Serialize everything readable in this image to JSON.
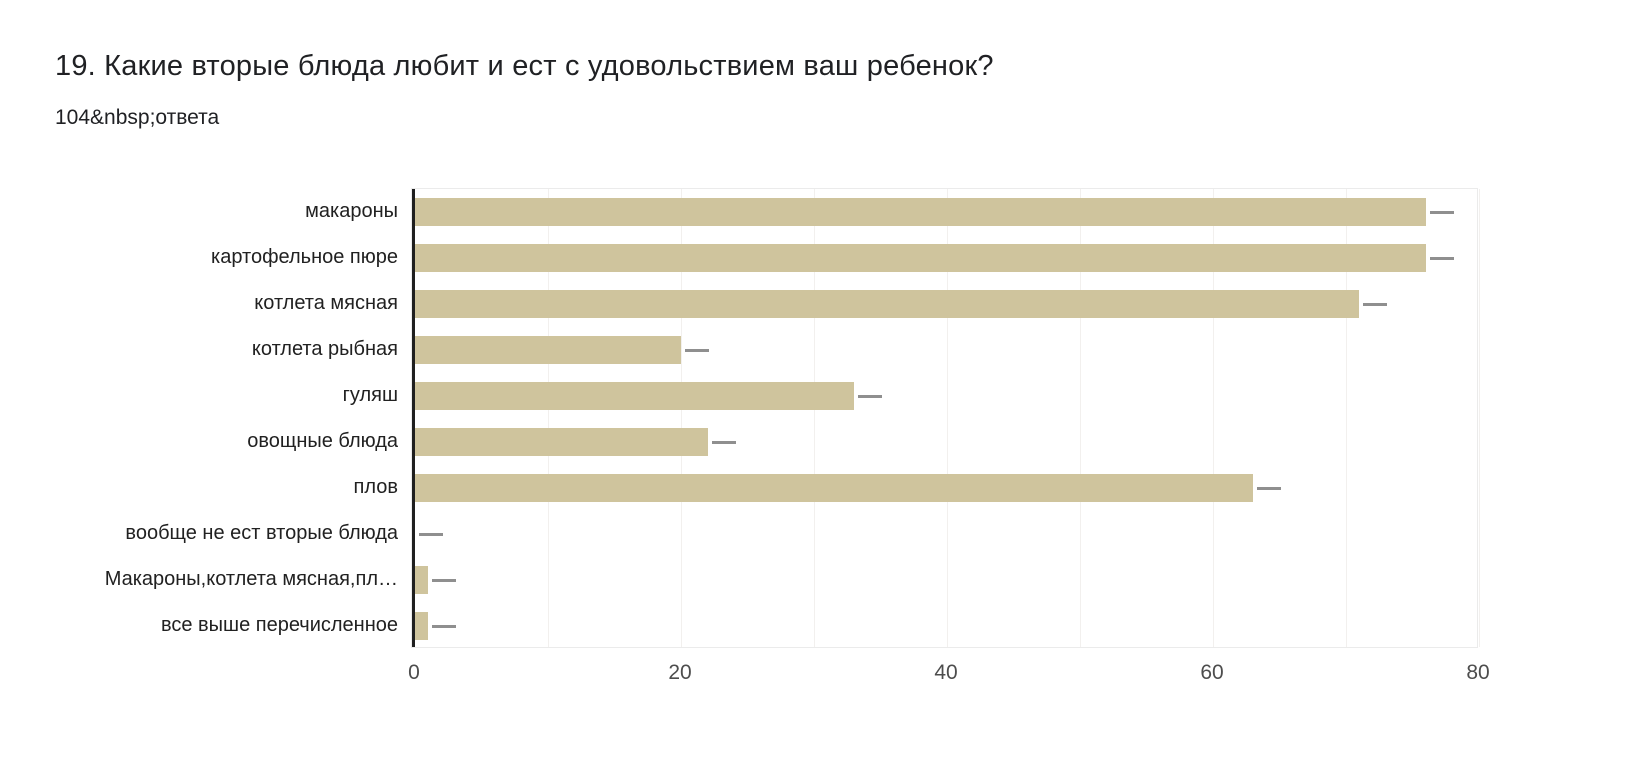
{
  "header": {
    "title": "19. Какие вторые блюда любит и ест с удовольствием ваш ребенок?",
    "subtitle": "104&nbsp;ответа"
  },
  "chart_data": {
    "type": "bar",
    "orientation": "horizontal",
    "title": "19. Какие вторые блюда любит и ест с удовольствием ваш ребенок?",
    "subtitle": "104&nbsp;ответа",
    "categories": [
      "макароны",
      "картофельное пюре",
      "котлета мясная",
      "котлета рыбная",
      "гуляш",
      "овощные блюда",
      "плов",
      "вообще не ест вторые блюда",
      "Макароны,котлета мясная,пл…",
      "все выше перечисленное"
    ],
    "values": [
      76,
      76,
      71,
      20,
      33,
      22,
      63,
      0,
      1,
      1
    ],
    "x_ticks": [
      0,
      20,
      40,
      60,
      80
    ],
    "xlim": [
      0,
      80
    ],
    "grid": "vertical minor gridlines every 10 units",
    "grid_interval": 10,
    "legend": "none",
    "whisker_length_units": 1.8,
    "colors": {
      "bar": "#cfc49d",
      "whisker": "#8f8f8f",
      "axis": "#1f1f1f",
      "gridline": "#f2f0ee",
      "plot_border": "#ebebeb",
      "title_text": "#202124",
      "category_text": "#212121",
      "tick_text": "#4d4d4d"
    }
  }
}
